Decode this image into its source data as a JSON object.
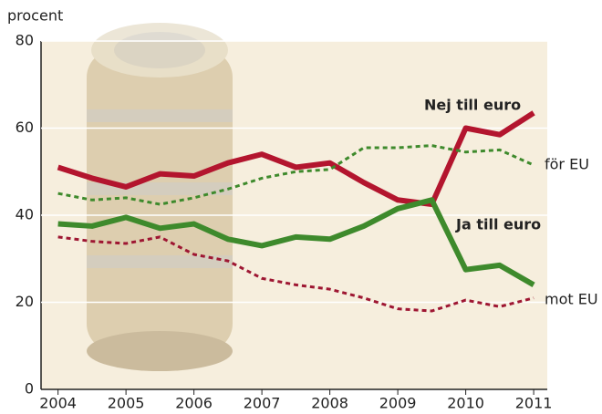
{
  "chart_data": {
    "type": "line",
    "y_label": "procent",
    "x": [
      2004,
      2004.5,
      2005,
      2005.5,
      2006,
      2006.5,
      2007,
      2007.5,
      2008,
      2008.5,
      2009,
      2009.5,
      2010,
      2010.5,
      2011
    ],
    "xlim": [
      2003.75,
      2011.2
    ],
    "xticks": [
      2004,
      2005,
      2006,
      2007,
      2008,
      2009,
      2010,
      2011
    ],
    "ylim": [
      0,
      80
    ],
    "yticks": [
      0,
      20,
      40,
      60,
      80
    ],
    "grid": true,
    "series": [
      {
        "name": "Nej till euro",
        "color": "#b3152e",
        "dashed": false,
        "values": [
          51,
          48.5,
          46.5,
          49.5,
          49,
          52,
          54,
          51,
          52,
          47.5,
          43.5,
          42.5,
          60,
          58.5,
          63.5
        ]
      },
      {
        "name": "för EU",
        "color": "#3e8a2c",
        "dashed": true,
        "values": [
          45,
          43.5,
          44,
          42.5,
          44,
          46,
          48.5,
          50,
          50.5,
          55.5,
          55.5,
          56,
          54.5,
          55,
          51.5
        ]
      },
      {
        "name": "Ja till euro",
        "color": "#3e8a2c",
        "dashed": false,
        "values": [
          38,
          37.5,
          39.5,
          37,
          38,
          34.5,
          33,
          35,
          34.5,
          37.5,
          41.5,
          43.5,
          27.5,
          28.5,
          24
        ]
      },
      {
        "name": "mot EU",
        "color": "#9e1632",
        "dashed": true,
        "values": [
          35,
          34,
          33.5,
          35,
          31,
          29.5,
          25.5,
          24,
          23,
          21,
          18.5,
          18,
          20.5,
          19,
          21
        ]
      }
    ]
  }
}
